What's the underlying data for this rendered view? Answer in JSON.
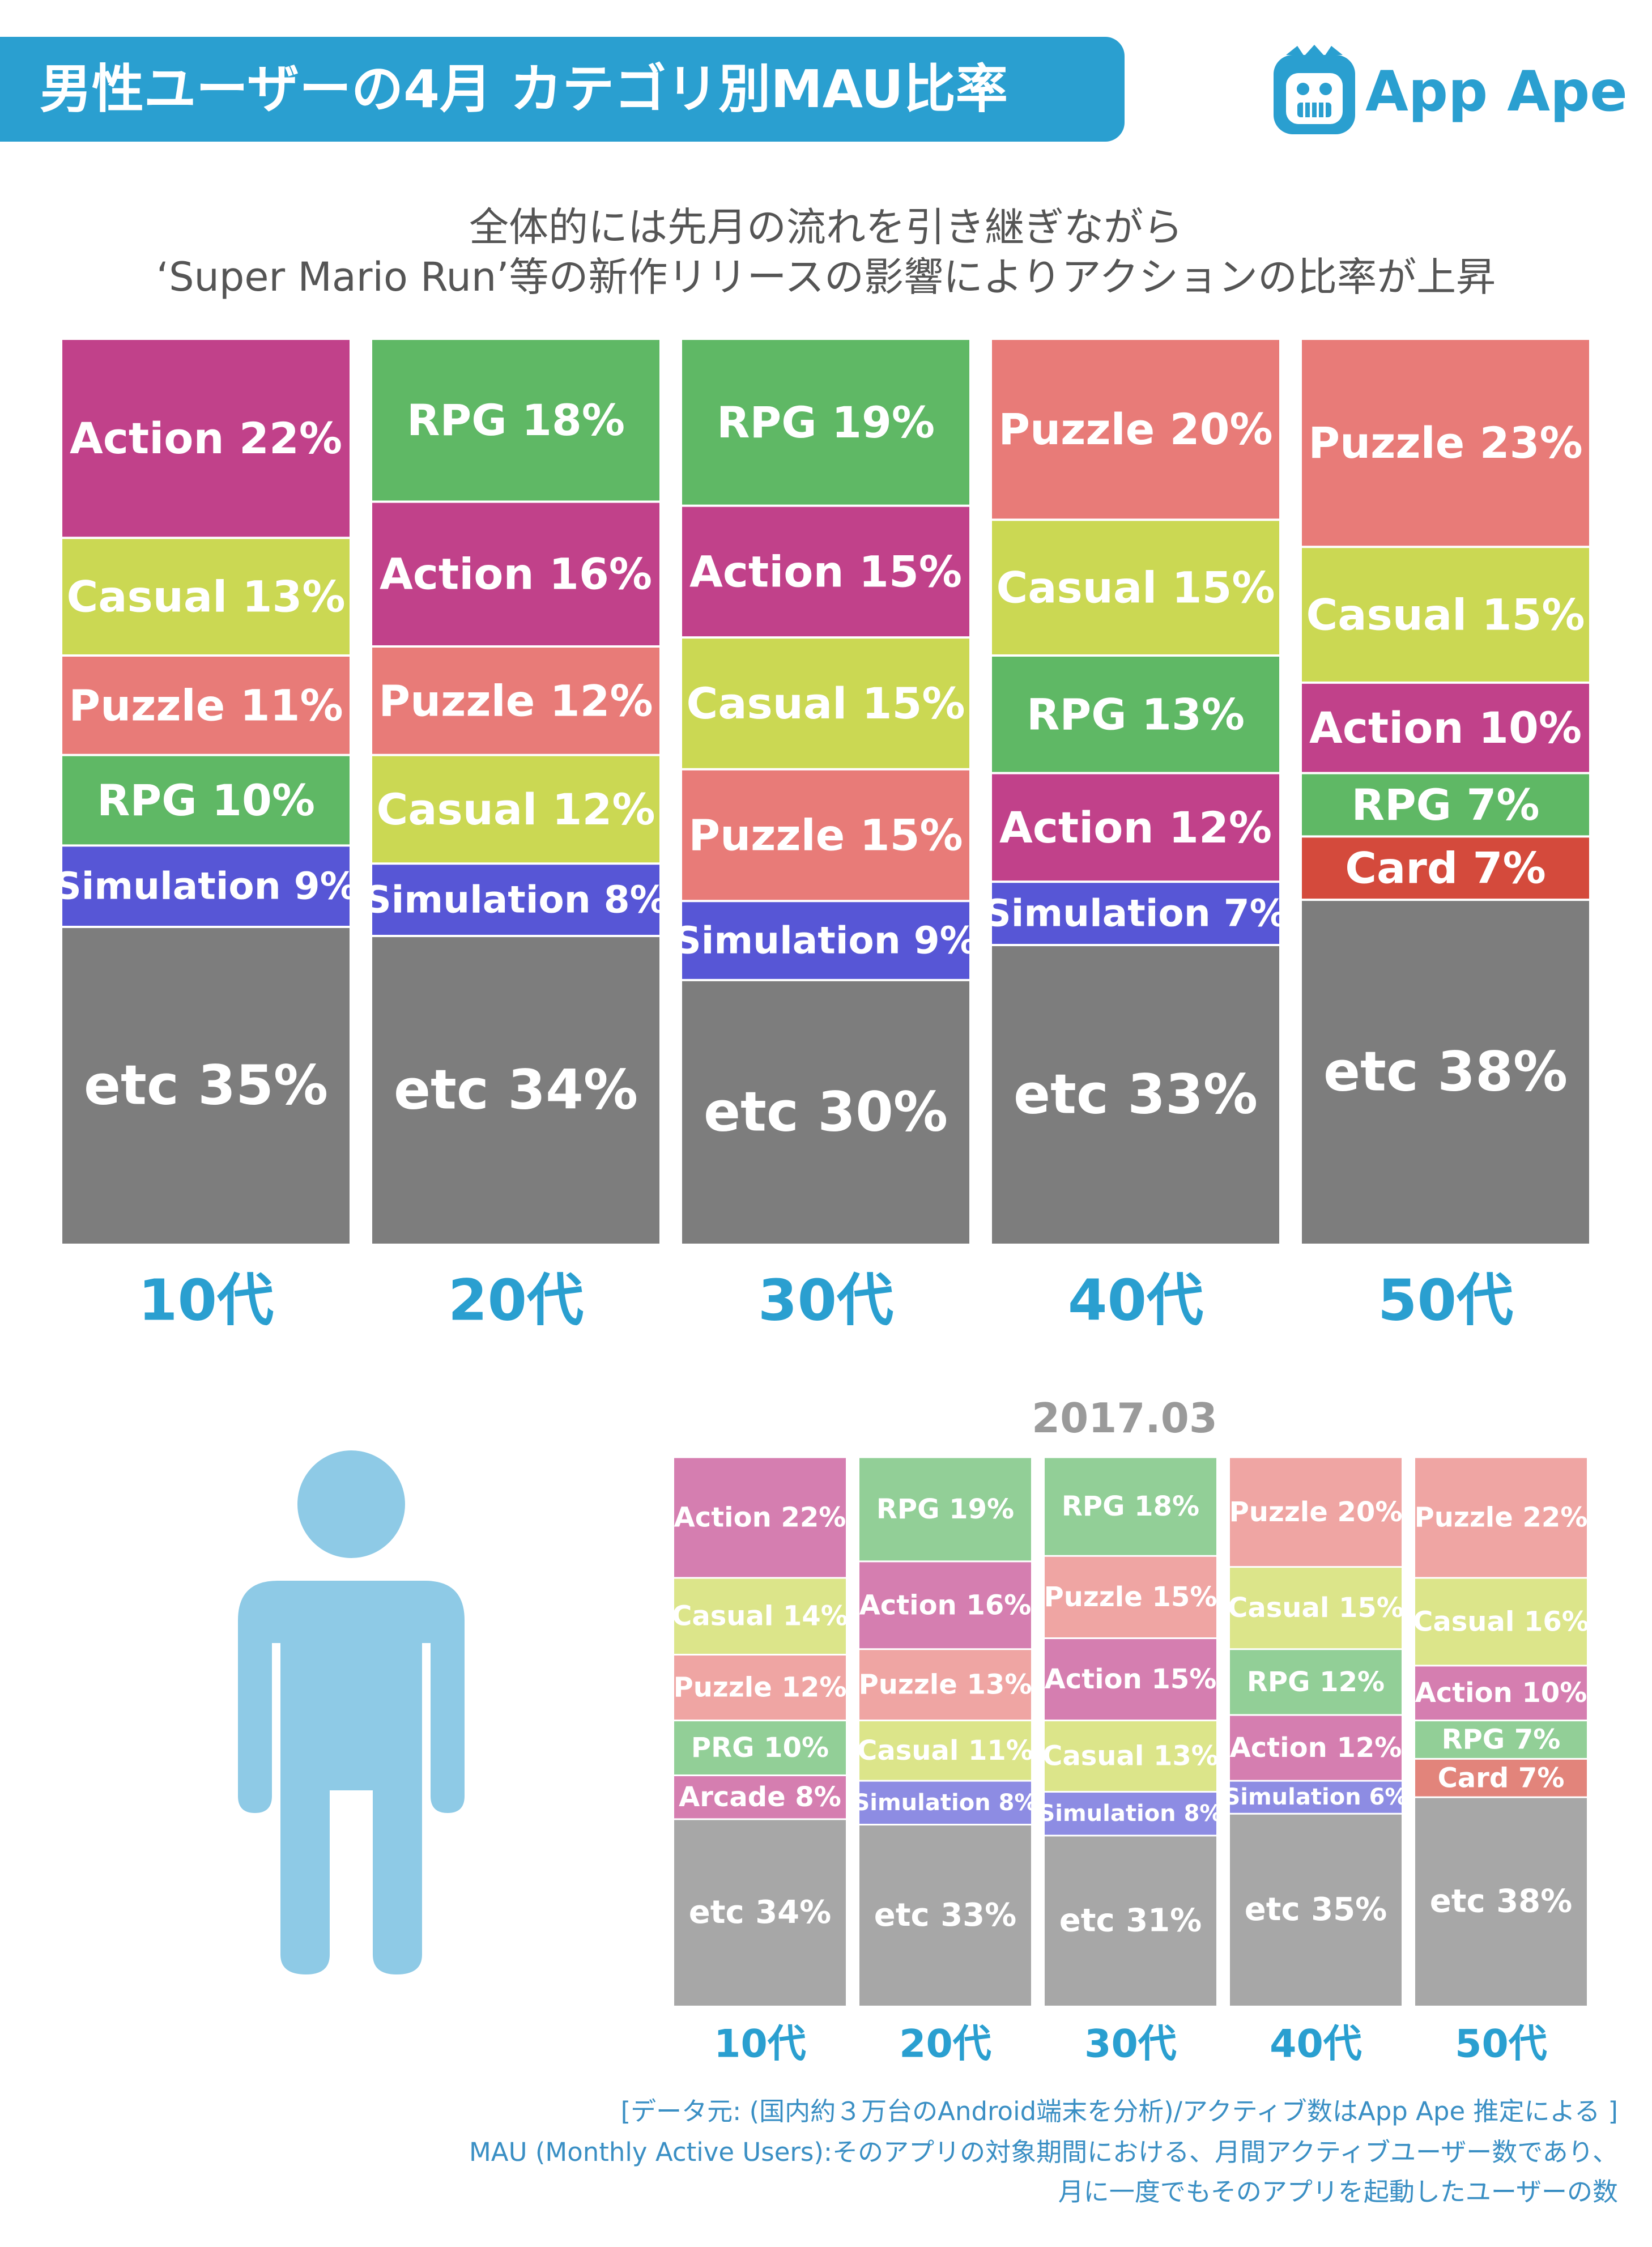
{
  "title": "男性ユーザーの4月 カテゴリ別MAU比率",
  "brand": {
    "name": "App Ape",
    "color": "#2a9fd0",
    "icon": "ape-face-icon"
  },
  "subtitle": {
    "line1": "全体的には先月の流れを引き継ぎながら",
    "line2": "‘Super Mario Run’等の新作リリースの影響によりアクションの比率が上昇"
  },
  "colors": {
    "Action": "#c1418a",
    "Casual": "#cbd853",
    "Puzzle": "#e87b78",
    "RPG": "#5fb865",
    "Simulation": "#5756d6",
    "Card": "#d44a3c",
    "Arcade": "#c1418a",
    "PRG": "#5fb865",
    "etc": "#7d7d7d",
    "axis_label": "#2a9fd0",
    "person": "#8ecae6"
  },
  "chart_data": [
    {
      "type": "bar",
      "stacked": true,
      "categories": [
        "10代",
        "20代",
        "30代",
        "40代",
        "50代"
      ],
      "columns": [
        {
          "age": "10代",
          "segments": [
            {
              "label": "Action 22%",
              "category": "Action",
              "value": 22
            },
            {
              "label": "Casual 13%",
              "category": "Casual",
              "value": 13
            },
            {
              "label": "Puzzle 11%",
              "category": "Puzzle",
              "value": 11
            },
            {
              "label": "RPG 10%",
              "category": "RPG",
              "value": 10
            },
            {
              "label": "Simulation 9%",
              "category": "Simulation",
              "value": 9
            },
            {
              "label": "etc 35%",
              "category": "etc",
              "value": 35
            }
          ]
        },
        {
          "age": "20代",
          "segments": [
            {
              "label": "RPG 18%",
              "category": "RPG",
              "value": 18
            },
            {
              "label": "Action 16%",
              "category": "Action",
              "value": 16
            },
            {
              "label": "Puzzle 12%",
              "category": "Puzzle",
              "value": 12
            },
            {
              "label": "Casual 12%",
              "category": "Casual",
              "value": 12
            },
            {
              "label": "Simulation 8%",
              "category": "Simulation",
              "value": 8
            },
            {
              "label": "etc 34%",
              "category": "etc",
              "value": 34
            }
          ]
        },
        {
          "age": "30代",
          "segments": [
            {
              "label": "RPG 19%",
              "category": "RPG",
              "value": 19
            },
            {
              "label": "Action 15%",
              "category": "Action",
              "value": 15
            },
            {
              "label": "Casual 15%",
              "category": "Casual",
              "value": 15
            },
            {
              "label": "Puzzle 15%",
              "category": "Puzzle",
              "value": 15
            },
            {
              "label": "Simulation 9%",
              "category": "Simulation",
              "value": 9
            },
            {
              "label": "etc 30%",
              "category": "etc",
              "value": 30
            }
          ]
        },
        {
          "age": "40代",
          "segments": [
            {
              "label": "Puzzle 20%",
              "category": "Puzzle",
              "value": 20
            },
            {
              "label": "Casual 15%",
              "category": "Casual",
              "value": 15
            },
            {
              "label": "RPG 13%",
              "category": "RPG",
              "value": 13
            },
            {
              "label": "Action 12%",
              "category": "Action",
              "value": 12
            },
            {
              "label": "Simulation 7%",
              "category": "Simulation",
              "value": 7
            },
            {
              "label": "etc 33%",
              "category": "etc",
              "value": 33
            }
          ]
        },
        {
          "age": "50代",
          "segments": [
            {
              "label": "Puzzle 23%",
              "category": "Puzzle",
              "value": 23
            },
            {
              "label": "Casual 15%",
              "category": "Casual",
              "value": 15
            },
            {
              "label": "Action 10%",
              "category": "Action",
              "value": 10
            },
            {
              "label": "RPG 7%",
              "category": "RPG",
              "value": 7
            },
            {
              "label": "Card 7%",
              "category": "Card",
              "value": 7
            },
            {
              "label": "etc 38%",
              "category": "etc",
              "value": 38
            }
          ]
        }
      ]
    },
    {
      "type": "bar",
      "stacked": true,
      "title": "2017.03",
      "categories": [
        "10代",
        "20代",
        "30代",
        "40代",
        "50代"
      ],
      "columns": [
        {
          "age": "10代",
          "segments": [
            {
              "label": "Action 22%",
              "category": "Action",
              "value": 22
            },
            {
              "label": "Casual 14%",
              "category": "Casual",
              "value": 14
            },
            {
              "label": "Puzzle 12%",
              "category": "Puzzle",
              "value": 12
            },
            {
              "label": "PRG 10%",
              "category": "PRG",
              "value": 10
            },
            {
              "label": "Arcade 8%",
              "category": "Arcade",
              "value": 8
            },
            {
              "label": "etc 34%",
              "category": "etc",
              "value": 34
            }
          ]
        },
        {
          "age": "20代",
          "segments": [
            {
              "label": "RPG 19%",
              "category": "RPG",
              "value": 19
            },
            {
              "label": "Action 16%",
              "category": "Action",
              "value": 16
            },
            {
              "label": "Puzzle 13%",
              "category": "Puzzle",
              "value": 13
            },
            {
              "label": "Casual 11%",
              "category": "Casual",
              "value": 11
            },
            {
              "label": "Simulation 8%",
              "category": "Simulation",
              "value": 8
            },
            {
              "label": "etc 33%",
              "category": "etc",
              "value": 33
            }
          ]
        },
        {
          "age": "30代",
          "segments": [
            {
              "label": "RPG 18%",
              "category": "RPG",
              "value": 18
            },
            {
              "label": "Puzzle 15%",
              "category": "Puzzle",
              "value": 15
            },
            {
              "label": "Action 15%",
              "category": "Action",
              "value": 15
            },
            {
              "label": "Casual 13%",
              "category": "Casual",
              "value": 13
            },
            {
              "label": "Simulation 8%",
              "category": "Simulation",
              "value": 8
            },
            {
              "label": "etc 31%",
              "category": "etc",
              "value": 31
            }
          ]
        },
        {
          "age": "40代",
          "segments": [
            {
              "label": "Puzzle 20%",
              "category": "Puzzle",
              "value": 20
            },
            {
              "label": "Casual 15%",
              "category": "Casual",
              "value": 15
            },
            {
              "label": "RPG 12%",
              "category": "RPG",
              "value": 12
            },
            {
              "label": "Action 12%",
              "category": "Action",
              "value": 12
            },
            {
              "label": "Simulation 6%",
              "category": "Simulation",
              "value": 6
            },
            {
              "label": "etc 35%",
              "category": "etc",
              "value": 35
            }
          ]
        },
        {
          "age": "50代",
          "segments": [
            {
              "label": "Puzzle 22%",
              "category": "Puzzle",
              "value": 22
            },
            {
              "label": "Casual 16%",
              "category": "Casual",
              "value": 16
            },
            {
              "label": "Action 10%",
              "category": "Action",
              "value": 10
            },
            {
              "label": "RPG 7%",
              "category": "RPG",
              "value": 7
            },
            {
              "label": "Card 7%",
              "category": "Card",
              "value": 7
            },
            {
              "label": "etc 38%",
              "category": "etc",
              "value": 38
            }
          ]
        }
      ]
    }
  ],
  "notes": {
    "source": "[データ元: (国内約３万台のAndroid端末を分析)/アクティブ数はApp Ape 推定による ]",
    "mau_line1": "MAU (Monthly Active Users):そのアプリの対象期間における、月間アクティブユーザー数であり、",
    "mau_line2": "月に一度でもそのアプリを起動したユーザーの数"
  }
}
